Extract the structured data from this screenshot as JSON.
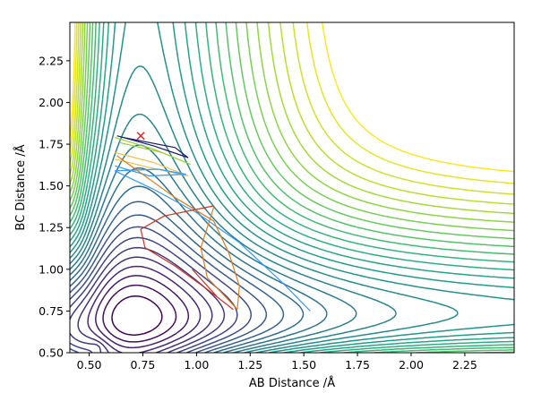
{
  "chart_data": {
    "type": "contour",
    "title": "",
    "xlabel": "AB Distance /Å",
    "ylabel": "BC Distance /Å",
    "xlim": [
      0.41,
      2.48
    ],
    "ylim": [
      0.5,
      2.48
    ],
    "xticks": [
      "0.50",
      "0.75",
      "1.00",
      "1.25",
      "1.50",
      "1.75",
      "2.00",
      "2.25"
    ],
    "yticks": [
      "0.50",
      "0.75",
      "1.00",
      "1.25",
      "1.50",
      "1.75",
      "2.00",
      "2.25"
    ],
    "grid": false,
    "legend": "none",
    "colormap": "viridis",
    "start_marker": {
      "x": 0.74,
      "y": 1.8,
      "symbol": "x",
      "color": "#d62728"
    },
    "trajectories": [
      {
        "color": "#1a1a6e",
        "points": [
          [
            0.63,
            1.8
          ],
          [
            0.8,
            1.74
          ],
          [
            0.96,
            1.67
          ],
          [
            0.9,
            1.73
          ],
          [
            0.66,
            1.79
          ]
        ]
      },
      {
        "color": "#9acd32",
        "points": [
          [
            0.62,
            1.79
          ],
          [
            0.8,
            1.72
          ],
          [
            0.97,
            1.63
          ],
          [
            0.84,
            1.7
          ],
          [
            0.64,
            1.76
          ]
        ]
      },
      {
        "color": "#f0c040",
        "points": [
          [
            0.62,
            1.7
          ],
          [
            0.8,
            1.64
          ],
          [
            0.96,
            1.56
          ],
          [
            0.78,
            1.61
          ],
          [
            0.62,
            1.66
          ]
        ]
      },
      {
        "color": "#3399ff",
        "points": [
          [
            0.62,
            1.62
          ],
          [
            0.78,
            1.56
          ],
          [
            0.95,
            1.57
          ],
          [
            0.82,
            1.6
          ],
          [
            0.62,
            1.59
          ],
          [
            0.8,
            1.48
          ],
          [
            1.0,
            1.34
          ],
          [
            1.2,
            1.16
          ],
          [
            1.4,
            0.92
          ],
          [
            1.53,
            0.75
          ]
        ]
      },
      {
        "color": "#e07a1a",
        "points": [
          [
            0.63,
            1.68
          ],
          [
            0.9,
            1.43
          ],
          [
            1.08,
            1.29
          ],
          [
            1.15,
            1.1
          ],
          [
            1.2,
            0.9
          ],
          [
            1.19,
            0.76
          ],
          [
            1.05,
            0.95
          ],
          [
            1.02,
            1.13
          ],
          [
            1.08,
            1.37
          ]
        ]
      },
      {
        "color": "#d03020",
        "points": [
          [
            1.08,
            1.38
          ],
          [
            0.85,
            1.32
          ],
          [
            0.74,
            1.24
          ],
          [
            0.76,
            1.13
          ],
          [
            0.9,
            1.02
          ],
          [
            1.05,
            0.88
          ],
          [
            1.17,
            0.76
          ],
          [
            1.1,
            0.83
          ],
          [
            0.98,
            1.0
          ]
        ]
      }
    ]
  }
}
